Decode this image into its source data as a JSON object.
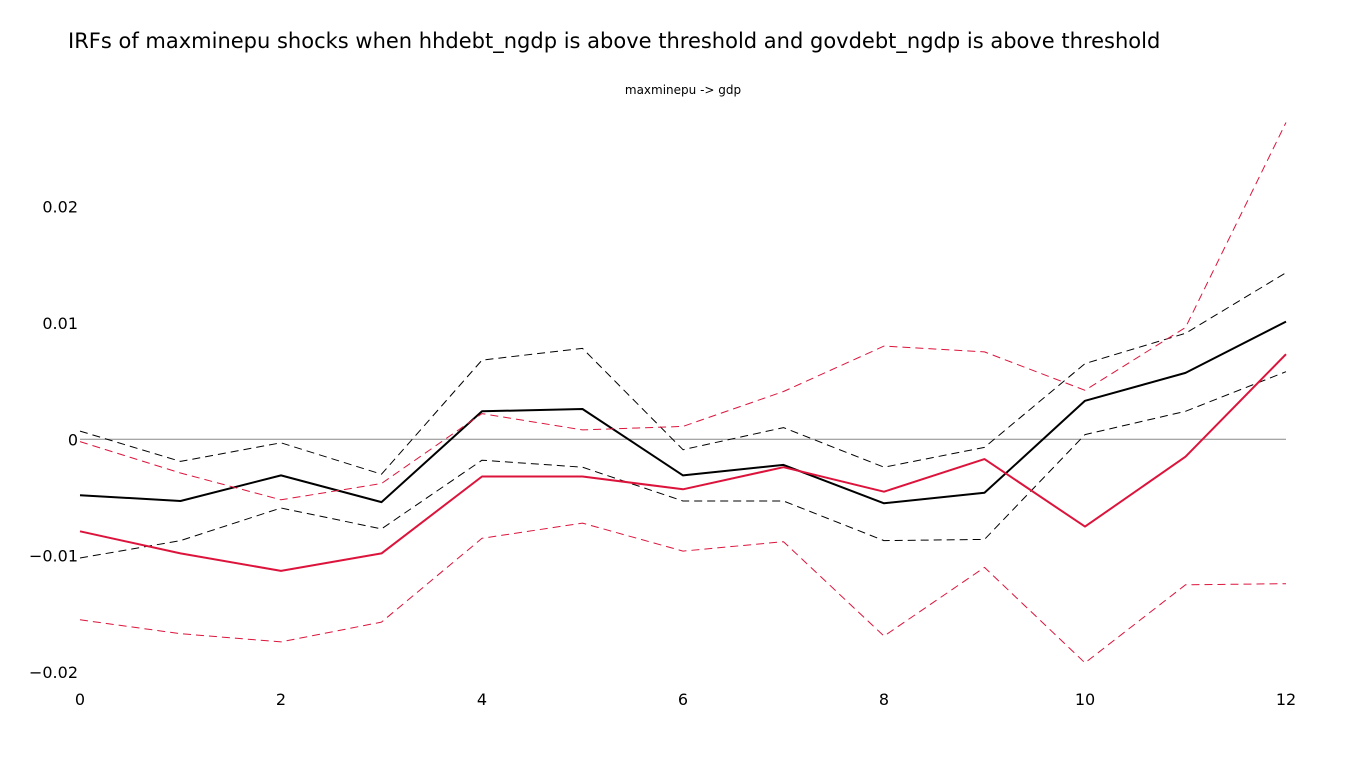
{
  "title": "IRFs of maxminepu shocks when hhdebt_ngdp is above threshold and govdebt_ngdp is above threshold",
  "subplot_title": "maxminepu -> gdp",
  "chart_data": {
    "type": "line",
    "title": "IRFs of maxminepu shocks when hhdebt_ngdp is above threshold and govdebt_ngdp is above threshold",
    "subtitle": "maxminepu -> gdp",
    "xlabel": "",
    "ylabel": "",
    "x": [
      0,
      1,
      2,
      3,
      4,
      5,
      6,
      7,
      8,
      9,
      10,
      11,
      12
    ],
    "xlim": [
      0,
      12
    ],
    "ylim": [
      -0.0205,
      0.0275
    ],
    "xticks": [
      0,
      2,
      4,
      6,
      8,
      10,
      12
    ],
    "xtick_labels": [
      "0",
      "2",
      "4",
      "6",
      "8",
      "10",
      "12"
    ],
    "yticks": [
      -0.02,
      -0.01,
      0,
      0.01,
      0.02
    ],
    "ytick_labels": [
      "−0.02",
      "−0.01",
      "0",
      "0.01",
      "0.02"
    ],
    "grid": false,
    "zero_line": true,
    "zero_line_color": "#888888",
    "series": [
      {
        "style": "solid",
        "color": "#000000",
        "values": [
          -0.0048,
          -0.0053,
          -0.0031,
          -0.0054,
          0.0024,
          0.0026,
          -0.0031,
          -0.0022,
          -0.0055,
          -0.0046,
          0.0033,
          0.0057,
          0.0101
        ]
      },
      {
        "style": "dashed",
        "color": "#000000",
        "values": [
          0.0007,
          -0.0019,
          -0.0003,
          -0.003,
          0.0068,
          0.0078,
          -0.0009,
          0.001,
          -0.0024,
          -0.0007,
          0.0065,
          0.0091,
          0.0143
        ]
      },
      {
        "style": "dashed",
        "color": "#000000",
        "values": [
          -0.0102,
          -0.0087,
          -0.0059,
          -0.0077,
          -0.0018,
          -0.0024,
          -0.0053,
          -0.0053,
          -0.0087,
          -0.0086,
          0.0004,
          0.0024,
          0.0058
        ]
      },
      {
        "style": "solid",
        "color": "#dc143c",
        "values": [
          -0.0079,
          -0.0098,
          -0.0113,
          -0.0098,
          -0.0032,
          -0.0032,
          -0.0043,
          -0.0024,
          -0.0045,
          -0.0017,
          -0.0075,
          -0.0015,
          0.0073
        ]
      },
      {
        "style": "dashed",
        "color": "#dc143c",
        "values": [
          -0.0002,
          -0.0029,
          -0.0052,
          -0.0038,
          0.0022,
          0.0008,
          0.0011,
          0.0041,
          0.008,
          0.0075,
          0.0042,
          0.0096,
          0.0272
        ]
      },
      {
        "style": "dashed",
        "color": "#dc143c",
        "values": [
          -0.0155,
          -0.0167,
          -0.0174,
          -0.0157,
          -0.0085,
          -0.0072,
          -0.0096,
          -0.0088,
          -0.0169,
          -0.011,
          -0.0192,
          -0.0125,
          -0.0124
        ]
      }
    ]
  }
}
